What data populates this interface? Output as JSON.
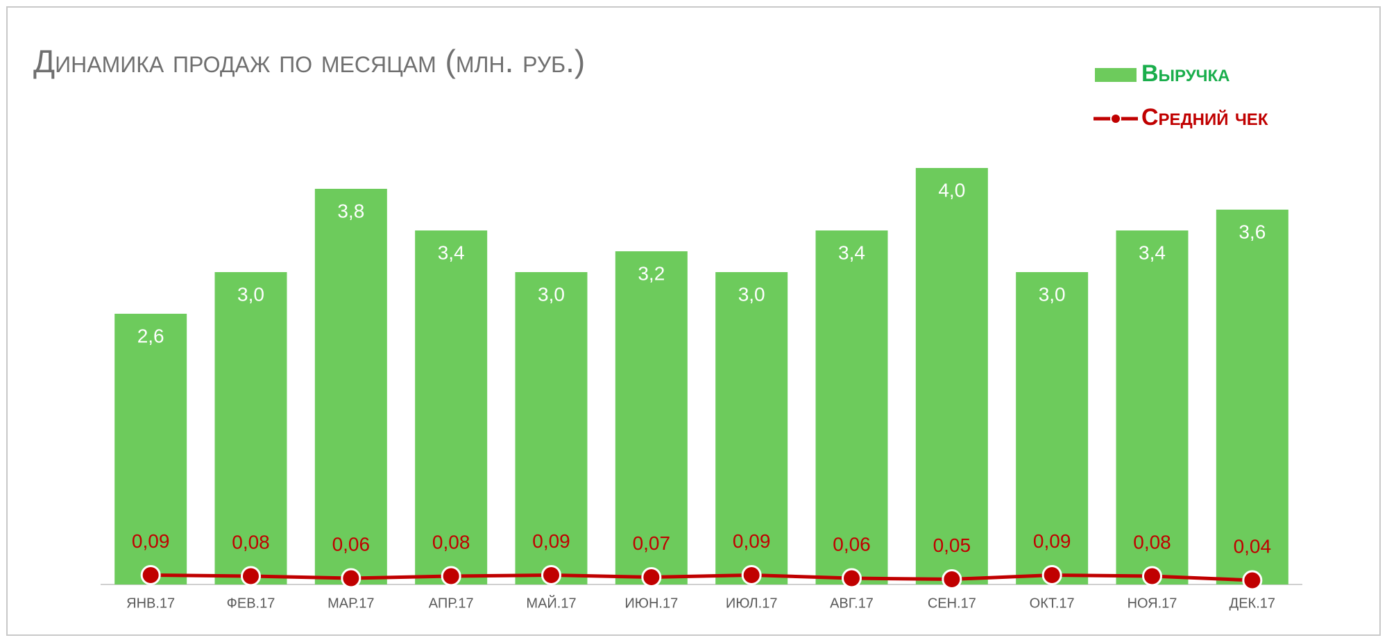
{
  "chart_data": {
    "type": "bar",
    "title": "Динамика продаж по месяцам (млн. руб.)",
    "categories": [
      "ЯНВ.17",
      "ФЕВ.17",
      "МАР.17",
      "АПР.17",
      "МАЙ.17",
      "ИЮН.17",
      "ИЮЛ.17",
      "АВГ.17",
      "СЕН.17",
      "ОКТ.17",
      "НОЯ.17",
      "ДЕК.17"
    ],
    "ylim": [
      0,
      4.3
    ],
    "series": [
      {
        "name": "Выручка",
        "type": "bar",
        "color": "#6dcb5c",
        "label_color": "#ffffff",
        "values": [
          2.6,
          3.0,
          3.8,
          3.4,
          3.0,
          3.2,
          3.0,
          3.4,
          4.0,
          3.0,
          3.4,
          3.6
        ],
        "value_labels": [
          "2,6",
          "3,0",
          "3,8",
          "3,4",
          "3,0",
          "3,2",
          "3,0",
          "3,4",
          "4,0",
          "3,0",
          "3,4",
          "3,6"
        ]
      },
      {
        "name": "Средний чек",
        "type": "line",
        "color": "#c00000",
        "label_color": "#c00000",
        "values": [
          0.09,
          0.08,
          0.06,
          0.08,
          0.09,
          0.07,
          0.09,
          0.06,
          0.05,
          0.09,
          0.08,
          0.04
        ],
        "value_labels": [
          "0,09",
          "0,08",
          "0,06",
          "0,08",
          "0,09",
          "0,07",
          "0,09",
          "0,06",
          "0,05",
          "0,09",
          "0,08",
          "0,04"
        ]
      }
    ]
  }
}
